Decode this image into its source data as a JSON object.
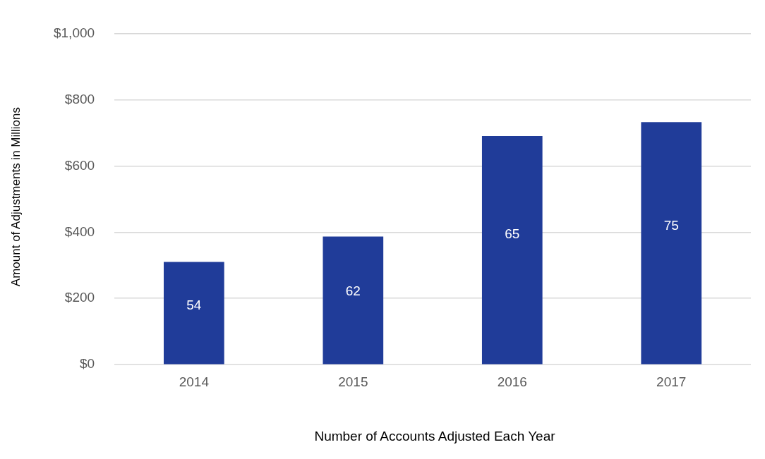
{
  "chart_data": {
    "type": "bar",
    "xlabel": "Number of Accounts Adjusted Each Year",
    "ylabel": "Amount of Adjustments in Millions",
    "categories": [
      "2014",
      "2015",
      "2016",
      "2017"
    ],
    "values": [
      310,
      387,
      690,
      732
    ],
    "annotations": [
      "54",
      "62",
      "65",
      "75"
    ],
    "color": "#203c99",
    "ylim": [
      0,
      1000
    ],
    "yticks": [
      {
        "value": 0,
        "label": "$0"
      },
      {
        "value": 200,
        "label": "$200"
      },
      {
        "value": 400,
        "label": "$400"
      },
      {
        "value": 600,
        "label": "$600"
      },
      {
        "value": 800,
        "label": "$800"
      },
      {
        "value": 1000,
        "label": "$1,000"
      }
    ],
    "grid": "y",
    "legend": false
  }
}
